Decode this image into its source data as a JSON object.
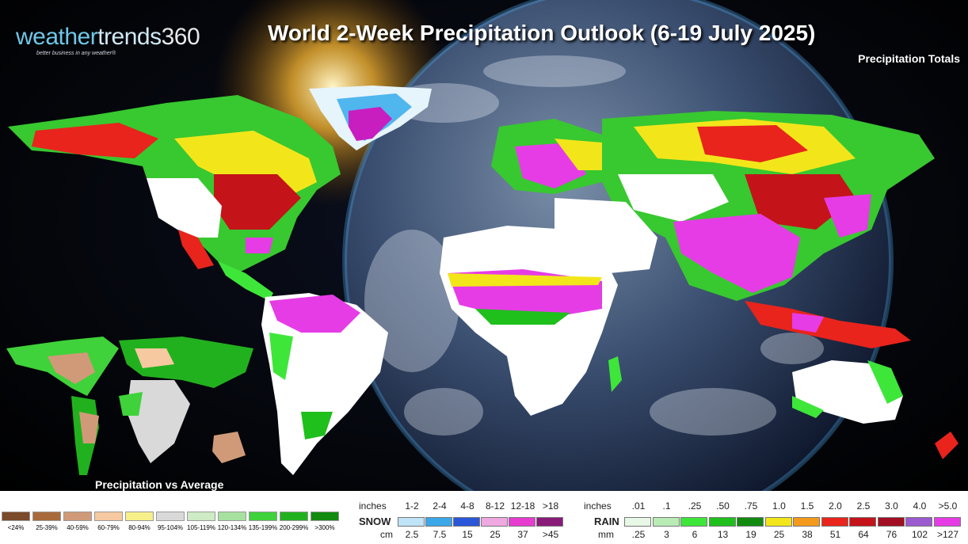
{
  "header": {
    "logo_word_a": "weather",
    "logo_word_b": "trends",
    "logo_num": "360",
    "logo_tagline": "better business in any weather®",
    "title": "World 2-Week Precipitation Outlook (6-19 July 2025)",
    "subtitle": "Precipitation Totals"
  },
  "inset": {
    "label": "Precipitation vs Average"
  },
  "legend": {
    "average": {
      "labels": [
        "<24%",
        "25-39%",
        "40-59%",
        "60-79%",
        "80-94%",
        "95-104%",
        "105-119%",
        "120-134%",
        "135-199%",
        "200-299%",
        ">300%"
      ],
      "colors": [
        "#7a4a2a",
        "#a86a3a",
        "#d09a78",
        "#f6c9a0",
        "#f7f08a",
        "#d9d9d9",
        "#cdebc4",
        "#a6e1a0",
        "#3fd23a",
        "#22b11e",
        "#118a0e"
      ]
    },
    "snow": {
      "title": "SNOW",
      "inches_label": "inches",
      "cm_label": "cm",
      "inches": [
        "1-2",
        "2-4",
        "4-8",
        "8-12",
        "12-18",
        ">18"
      ],
      "cm": [
        "2.5",
        "7.5",
        "15",
        "25",
        "37",
        ">45"
      ],
      "colors": [
        "#bfe3f7",
        "#3ca8ea",
        "#2a56d8",
        "#f0a8e0",
        "#e63ccf",
        "#8a1a78"
      ]
    },
    "rain": {
      "title": "RAIN",
      "inches_label": "inches",
      "mm_label": "mm",
      "inches": [
        ".01",
        ".1",
        ".25",
        ".50",
        ".75",
        "1.0",
        "1.5",
        "2.0",
        "2.5",
        "3.0",
        "4.0",
        ">5.0"
      ],
      "mm": [
        ".25",
        "3",
        "6",
        "13",
        "19",
        "25",
        "38",
        "51",
        "64",
        "76",
        "102",
        ">127"
      ],
      "colors": [
        "#e8f8e6",
        "#b8ecb4",
        "#3ee63a",
        "#1fbf1c",
        "#128a10",
        "#f2e61a",
        "#f39a1c",
        "#e8241c",
        "#c4141a",
        "#a30f22",
        "#9a5ad0",
        "#e63ce6"
      ]
    }
  }
}
